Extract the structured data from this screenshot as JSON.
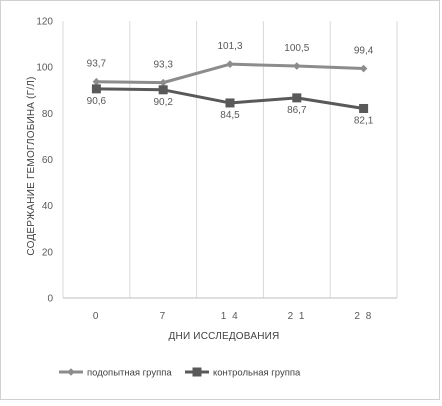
{
  "chart_data": {
    "type": "line",
    "title": "",
    "xlabel": "ДНИ ИССЛЕДОВАНИЯ",
    "ylabel": "СОДЕРЖАНИЕ ГЕМОГЛОБИНА (Г/Л)",
    "categories": [
      "0",
      "7",
      "14",
      "21",
      "28"
    ],
    "ylim": [
      0,
      120
    ],
    "yticks": [
      "0",
      "20",
      "40",
      "60",
      "80",
      "100",
      "120"
    ],
    "grid": "vertical",
    "legend_position": "bottom-left",
    "series": [
      {
        "name": "подопытная группа",
        "values": [
          93.7,
          93.3,
          101.3,
          100.5,
          99.4
        ],
        "labels": [
          "93,7",
          "93,3",
          "101,3",
          "100,5",
          "99,4"
        ],
        "color": "#8c8c8c",
        "marker": "diamond"
      },
      {
        "name": "контрольная группа",
        "values": [
          90.6,
          90.2,
          84.5,
          86.7,
          82.1
        ],
        "labels": [
          "90,6",
          "90,2",
          "84,5",
          "86,7",
          "82,1"
        ],
        "color": "#595959",
        "marker": "square"
      }
    ]
  }
}
